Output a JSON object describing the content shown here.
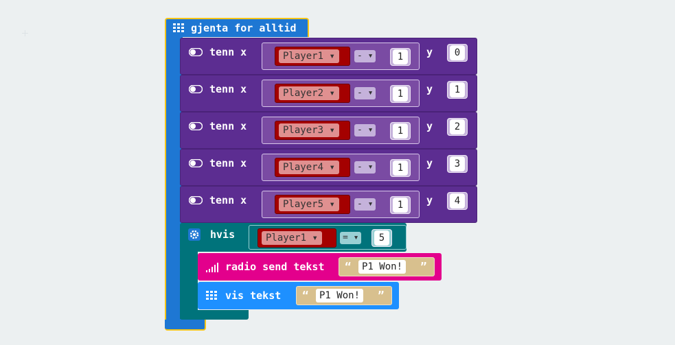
{
  "forever": {
    "label": "gjenta for alltid"
  },
  "plots": [
    {
      "label": "tenn x",
      "variable": "Player1",
      "operator": "-",
      "operand": "1",
      "y_label": "y",
      "y_value": "0"
    },
    {
      "label": "tenn x",
      "variable": "Player2",
      "operator": "-",
      "operand": "1",
      "y_label": "y",
      "y_value": "1"
    },
    {
      "label": "tenn x",
      "variable": "Player3",
      "operator": "-",
      "operand": "1",
      "y_label": "y",
      "y_value": "2"
    },
    {
      "label": "tenn x",
      "variable": "Player4",
      "operator": "-",
      "operand": "1",
      "y_label": "y",
      "y_value": "3"
    },
    {
      "label": "tenn x",
      "variable": "Player5",
      "operator": "-",
      "operand": "1",
      "y_label": "y",
      "y_value": "4"
    }
  ],
  "if_block": {
    "label": "hvis",
    "variable": "Player1",
    "operator": "=",
    "value": "5"
  },
  "radio_send": {
    "label": "radio send tekst",
    "text": "P1 Won!"
  },
  "show_text": {
    "label": "vis tekst",
    "text": "P1 Won!"
  },
  "colors": {
    "background": "#ecf0f1",
    "loop": "#1e77d3",
    "loop_border": "#f5c518",
    "led": "#5c2d91",
    "logic": "#00737b",
    "radio": "#e3008c",
    "basic": "#1e90ff",
    "variable": "#a40000",
    "text_literal": "#d8c08e"
  },
  "icons": {
    "forever": "grid-icon",
    "plot": "toggle-icon",
    "if": "gear-icon",
    "radio": "signal-bars-icon",
    "show": "grid-icon"
  }
}
